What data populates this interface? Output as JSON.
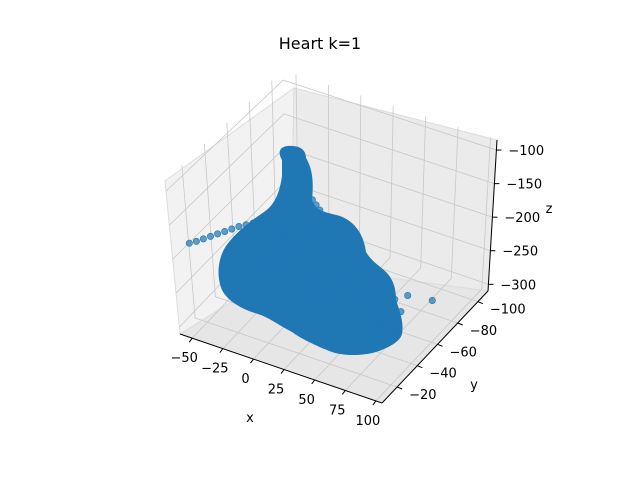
{
  "chart_data": {
    "type": "scatter",
    "title": "Heart k=1",
    "projection": "3d",
    "xlabel": "x",
    "ylabel": "y",
    "zlabel": "z",
    "xlim": [
      -60,
      105
    ],
    "ylim": [
      -110,
      -5
    ],
    "zlim": [
      -310,
      -85
    ],
    "xticks": [
      -50,
      -25,
      0,
      25,
      50,
      75,
      100
    ],
    "xtick_labels": [
      "−50",
      "−25",
      "0",
      "25",
      "50",
      "75",
      "100"
    ],
    "yticks": [
      -100,
      -80,
      -60,
      -40,
      -20
    ],
    "ytick_labels": [
      "−100",
      "−80",
      "−60",
      "−40",
      "−20"
    ],
    "zticks": [
      -300,
      -250,
      -200,
      -150,
      -100
    ],
    "ztick_labels": [
      "−300",
      "−250",
      "−200",
      "−150",
      "−100"
    ],
    "grid": true,
    "marker_color": "#1f77b4",
    "marker": "circle",
    "series": [
      {
        "values_note": "",
        "points": [
          [
            -50,
            -10,
            -178
          ],
          [
            -46,
            -12,
            -176
          ],
          [
            -42,
            -14,
            -173
          ],
          [
            -38,
            -16,
            -170
          ],
          [
            -34,
            -18,
            -167
          ],
          [
            -30,
            -20,
            -164
          ],
          [
            -26,
            -22,
            -161
          ],
          [
            -22,
            -24,
            -158
          ],
          [
            -18,
            -26,
            -156
          ],
          [
            -14,
            -28,
            -154
          ],
          [
            10,
            -20,
            -153
          ],
          [
            12,
            -22,
            -151
          ],
          [
            14,
            -24,
            -149
          ],
          [
            -4,
            -20,
            -205
          ],
          [
            96,
            -30,
            -248
          ],
          [
            92,
            -32,
            -252
          ],
          [
            88,
            -34,
            -256
          ],
          [
            84,
            -36,
            -260
          ],
          [
            80,
            -38,
            -263
          ],
          [
            76,
            -40,
            -266
          ],
          [
            72,
            -42,
            -269
          ],
          [
            68,
            -44,
            -272
          ],
          [
            64,
            -46,
            -275
          ],
          [
            60,
            -48,
            -278
          ],
          [
            20,
            -40,
            -110
          ],
          [
            21,
            -42,
            -120
          ],
          [
            22,
            -44,
            -130
          ],
          [
            23,
            -46,
            -140
          ],
          [
            24,
            -48,
            -150
          ],
          [
            25,
            -50,
            -160
          ],
          [
            0,
            -60,
            -220
          ],
          [
            10,
            -60,
            -215
          ],
          [
            20,
            -60,
            -210
          ],
          [
            30,
            -60,
            -215
          ],
          [
            40,
            -60,
            -225
          ],
          [
            50,
            -60,
            -235
          ],
          [
            -10,
            -60,
            -240
          ],
          [
            -20,
            -60,
            -255
          ],
          [
            -25,
            -60,
            -265
          ],
          [
            60,
            -60,
            -250
          ],
          [
            70,
            -60,
            -265
          ],
          [
            75,
            -60,
            -280
          ],
          [
            0,
            -70,
            -290
          ],
          [
            20,
            -75,
            -295
          ],
          [
            40,
            -80,
            -300
          ],
          [
            60,
            -85,
            -305
          ],
          [
            80,
            -85,
            -300
          ],
          [
            10,
            -50,
            -270
          ],
          [
            30,
            -50,
            -260
          ],
          [
            50,
            -50,
            -255
          ]
        ]
      }
    ]
  }
}
